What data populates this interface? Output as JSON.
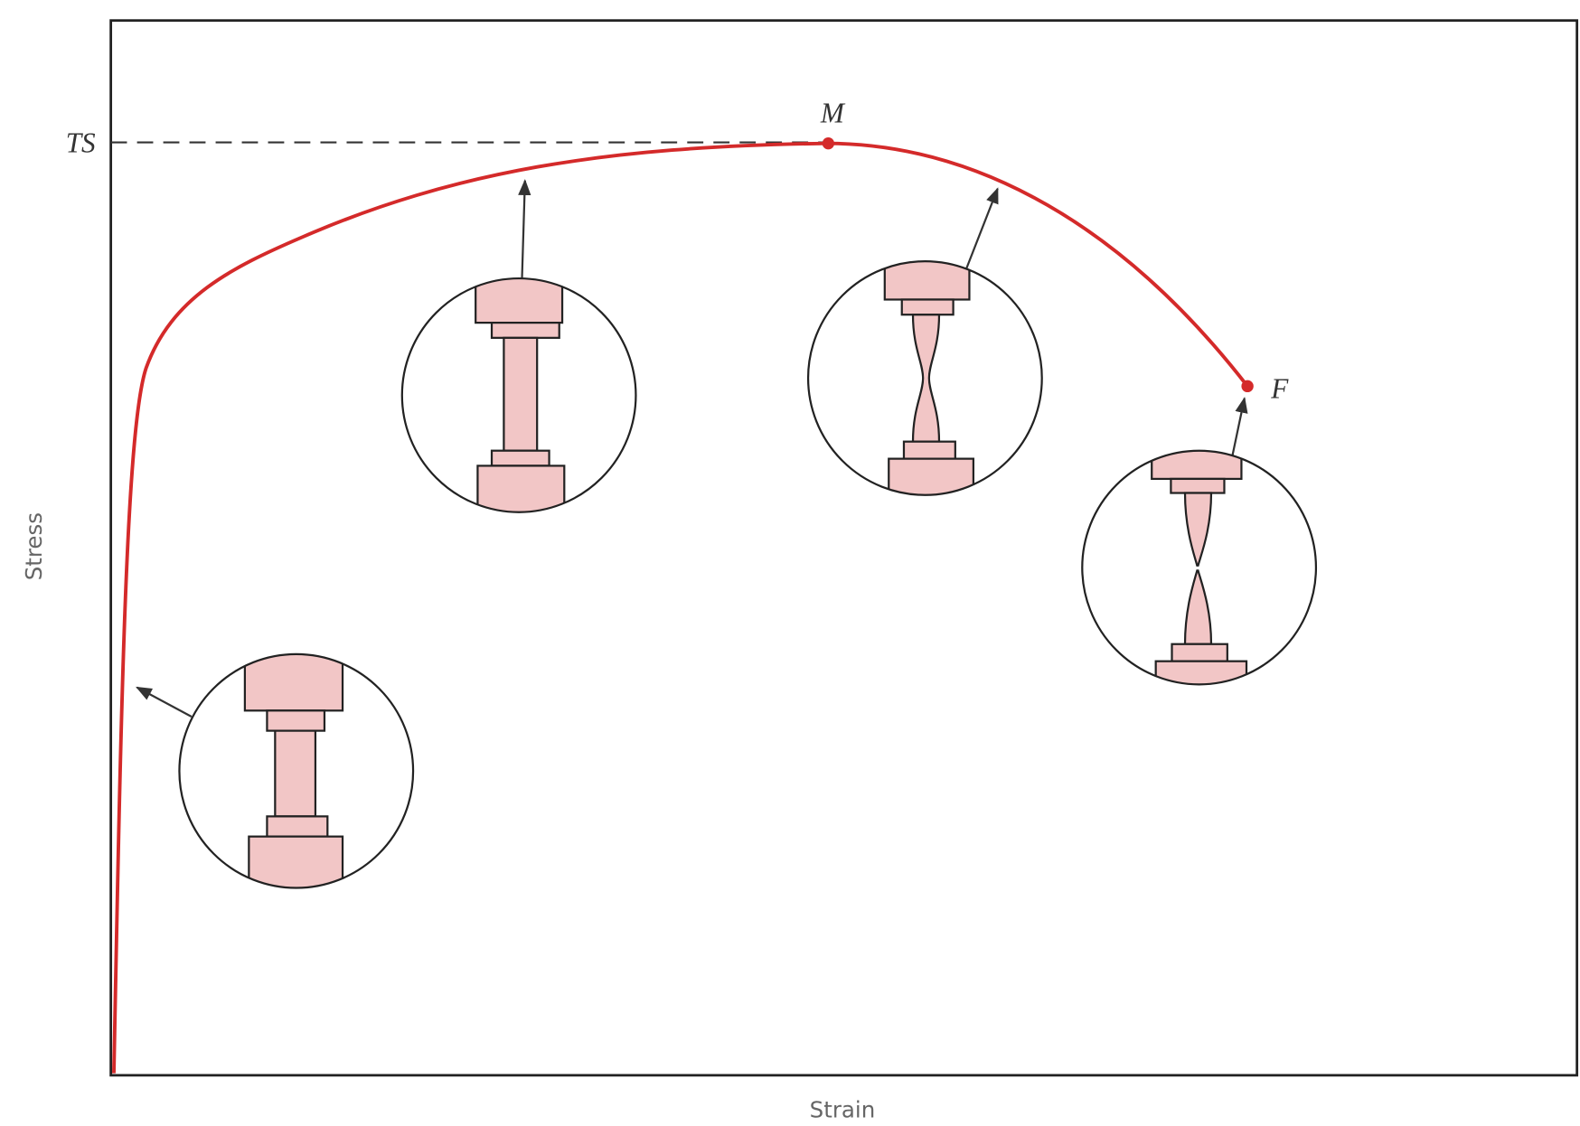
{
  "axes": {
    "x_label": "Strain",
    "y_label": "Stress"
  },
  "annotations": {
    "tensile_strength": "TS",
    "max_point": "M",
    "fracture_point": "F"
  }
}
